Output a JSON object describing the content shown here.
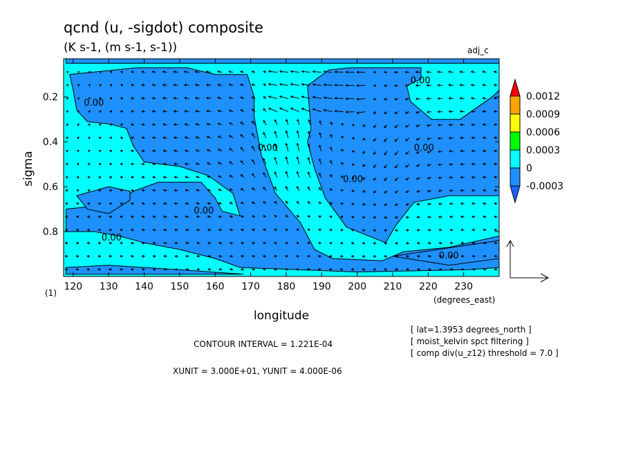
{
  "title": "qcnd (u, -sigdot) composite",
  "units": "(K s-1, (m s-1, s-1))",
  "dataset": "adj_c",
  "panel_label": "(1)",
  "xlabel": "longitude",
  "x_units": "(degrees_east)",
  "ylabel": "sigma",
  "contour_interval": "CONTOUR INTERVAL = 1.221E-04",
  "vector_units": "XUNIT = 3.000E+01, YUNIT = 4.000E-06",
  "notes": [
    "[ lat=1.3953 degrees_north ]",
    "[ moist_kelvin spct filtering ]",
    "[ comp div(u_z12) threshold = 7.0 ]"
  ],
  "contour_label": "0.00",
  "colors": {
    "positive": "#00ffff",
    "negative": "#1e90ff",
    "c_0009": "#ffa500",
    "c_0006": "#ffff00",
    "c_0003": "#00ff00",
    "c_max": "#ff0000",
    "c_min": "#1e64ff"
  },
  "chart_data": {
    "type": "contour_vector",
    "x_ticks": [
      120,
      130,
      140,
      150,
      160,
      170,
      180,
      190,
      200,
      210,
      220,
      230
    ],
    "x_tick_labels": [
      "120",
      "130",
      "140",
      "150",
      "160",
      "170",
      "180",
      "190",
      "200",
      "210",
      "220",
      "230"
    ],
    "xlim": [
      117.3,
      240
    ],
    "y_ticks": [
      0.2,
      0.4,
      0.6,
      0.8
    ],
    "y_tick_labels": [
      "0.2",
      "0.4",
      "0.6",
      "0.8"
    ],
    "ylim": [
      0.03,
      1.0
    ],
    "y_inverted": true,
    "colorbar": {
      "levels": [
        0.0012,
        0.0009,
        0.0006,
        0.0003,
        0,
        -0.0003
      ],
      "labels": [
        "0.0012",
        "0.0009",
        "0.0006",
        "0.0003",
        "0",
        "-0.0003"
      ],
      "band_colors": [
        "#ffa500",
        "#ffff00",
        "#00ff00",
        "#00ffff",
        "#1e90ff"
      ],
      "above_color": "#ff0000",
      "below_color": "#1e64ff"
    },
    "negative_regions": [
      {
        "name": "main-left-band",
        "polygon": [
          [
            119,
            0.1
          ],
          [
            138,
            0.07
          ],
          [
            152,
            0.07
          ],
          [
            160,
            0.1
          ],
          [
            169,
            0.1
          ],
          [
            171,
            0.2
          ],
          [
            171,
            0.29
          ],
          [
            173,
            0.46
          ],
          [
            177,
            0.63
          ],
          [
            184,
            0.76
          ],
          [
            188,
            0.88
          ],
          [
            193,
            0.92
          ],
          [
            207,
            0.93
          ],
          [
            213,
            0.89
          ],
          [
            226,
            0.87
          ],
          [
            240,
            0.82
          ],
          [
            240,
            0.96
          ],
          [
            231,
            0.97
          ],
          [
            200,
            0.98
          ],
          [
            167,
            0.96
          ],
          [
            160,
            0.92
          ],
          [
            150,
            0.88
          ],
          [
            140,
            0.85
          ],
          [
            133,
            0.82
          ],
          [
            126,
            0.8
          ],
          [
            118,
            0.8
          ],
          [
            118,
            0.7
          ],
          [
            124,
            0.69
          ],
          [
            133,
            0.66
          ],
          [
            137,
            0.62
          ],
          [
            144,
            0.58
          ],
          [
            156,
            0.58
          ],
          [
            160,
            0.65
          ],
          [
            162,
            0.71
          ],
          [
            167,
            0.73
          ],
          [
            165,
            0.63
          ],
          [
            158,
            0.55
          ],
          [
            150,
            0.51
          ],
          [
            140,
            0.49
          ],
          [
            137,
            0.42
          ],
          [
            135,
            0.34
          ],
          [
            130,
            0.32
          ],
          [
            124,
            0.31
          ],
          [
            121,
            0.26
          ],
          [
            120,
            0.17
          ]
        ]
      },
      {
        "name": "right-upper-band",
        "polygon": [
          [
            198,
            0.07
          ],
          [
            218,
            0.07
          ],
          [
            218,
            0.12
          ],
          [
            214,
            0.15
          ],
          [
            215,
            0.22
          ],
          [
            221,
            0.3
          ],
          [
            229,
            0.3
          ],
          [
            238,
            0.2
          ],
          [
            240,
            0.17
          ],
          [
            240,
            0.64
          ],
          [
            226,
            0.64
          ],
          [
            216,
            0.67
          ],
          [
            211,
            0.77
          ],
          [
            208,
            0.85
          ],
          [
            197,
            0.78
          ],
          [
            191,
            0.65
          ],
          [
            188,
            0.52
          ],
          [
            186,
            0.4
          ],
          [
            187,
            0.34
          ],
          [
            186,
            0.15
          ],
          [
            192,
            0.08
          ]
        ]
      },
      {
        "name": "left-island",
        "polygon": [
          [
            121,
            0.64
          ],
          [
            130,
            0.6
          ],
          [
            136,
            0.62
          ],
          [
            136,
            0.66
          ],
          [
            130,
            0.72
          ],
          [
            124,
            0.7
          ]
        ]
      },
      {
        "name": "top-left-cap",
        "polygon": [
          [
            118,
            0.03
          ],
          [
            240,
            0.03
          ],
          [
            240,
            0.05
          ],
          [
            118,
            0.05
          ]
        ]
      },
      {
        "name": "bottom-right-tongue",
        "polygon": [
          [
            210,
            0.91
          ],
          [
            227,
            0.87
          ],
          [
            240,
            0.84
          ],
          [
            240,
            0.92
          ],
          [
            226,
            0.95
          ]
        ]
      },
      {
        "name": "bottom-left-sliver",
        "polygon": [
          [
            118,
            0.96
          ],
          [
            130,
            0.95
          ],
          [
            150,
            0.97
          ],
          [
            168,
            0.99
          ],
          [
            118,
            0.99
          ]
        ]
      }
    ],
    "contour_labels": [
      {
        "x": 123,
        "y": 0.24,
        "text": "0.00"
      },
      {
        "x": 172,
        "y": 0.44,
        "text": "0.00"
      },
      {
        "x": 154,
        "y": 0.72,
        "text": "0.00"
      },
      {
        "x": 128,
        "y": 0.84,
        "text": "0.00"
      },
      {
        "x": 196,
        "y": 0.58,
        "text": "0.00"
      },
      {
        "x": 215,
        "y": 0.14,
        "text": "0.00"
      },
      {
        "x": 216,
        "y": 0.44,
        "text": "0.00"
      },
      {
        "x": 223,
        "y": 0.92,
        "text": "0.00"
      }
    ],
    "vector_reference": {
      "u": 30.0,
      "minus_sigdot": 4e-06
    }
  }
}
